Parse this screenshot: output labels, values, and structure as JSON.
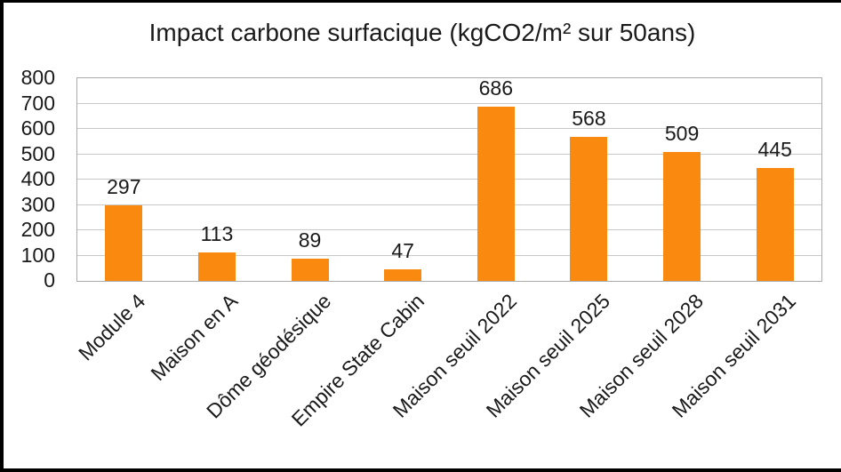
{
  "frame": {
    "background": "#ffffff",
    "border_color": "#000000"
  },
  "chart_data": {
    "type": "bar",
    "title": "Impact carbone surfacique (kgCO2/m² sur 50ans)",
    "categories": [
      "Module 4",
      "Maison en A",
      "Dôme géodésique",
      "Empire State Cabin",
      "Maison seuil 2022",
      "Maison seuil 2025",
      "Maison seuil 2028",
      "Maison seuil 2031"
    ],
    "values": [
      297,
      113,
      89,
      47,
      686,
      568,
      509,
      445
    ],
    "data_labels": [
      "297",
      "113",
      "89",
      "47",
      "686",
      "568",
      "509",
      "445"
    ],
    "xlabel": "",
    "ylabel": "",
    "ylim": [
      0,
      800
    ],
    "yticks": [
      0,
      100,
      200,
      300,
      400,
      500,
      600,
      700,
      800
    ],
    "grid": true,
    "legend": false,
    "x_label_rotation_deg": 45,
    "colors": {
      "bar": "#fa8a0f",
      "gridline": "#c9c9c9",
      "plot_border": "#ababab",
      "text": "#1a1a1a"
    }
  }
}
